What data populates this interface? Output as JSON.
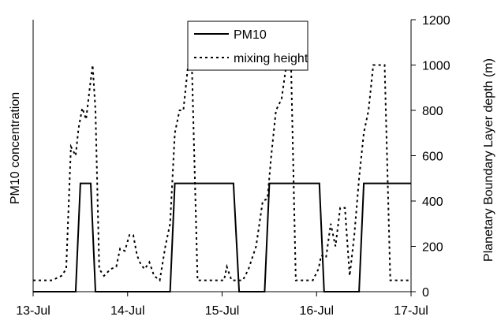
{
  "chart_data": {
    "type": "line",
    "ylabel_left": "PM10 concentration",
    "ylabel_right": "Planetary Boundary Layer depth (m)",
    "x_ticks": [
      "13-Jul",
      "14-Jul",
      "15-Jul",
      "16-Jul",
      "17-Jul"
    ],
    "xlim": [
      0,
      4
    ],
    "y_right_ticks": [
      0,
      200,
      400,
      600,
      800,
      1000,
      1200
    ],
    "y_right_lim": [
      0,
      1200
    ],
    "grid": false,
    "legend": "top-center",
    "series": [
      {
        "name": "PM10",
        "style": "solid",
        "color": "#000000",
        "x": [
          0.0,
          0.45,
          0.5,
          0.61,
          0.66,
          1.45,
          1.5,
          2.12,
          2.18,
          2.45,
          2.5,
          3.03,
          3.08,
          3.45,
          3.5,
          4.0
        ],
        "y": [
          0,
          0,
          478,
          478,
          0,
          0,
          478,
          478,
          0,
          0,
          478,
          478,
          0,
          0,
          478,
          478
        ]
      },
      {
        "name": "mixing height",
        "style": "dotted",
        "color": "#000000",
        "x": [
          0.0,
          0.2,
          0.3,
          0.35,
          0.4,
          0.45,
          0.48,
          0.52,
          0.56,
          0.6,
          0.63,
          0.66,
          0.7,
          0.75,
          0.82,
          0.88,
          0.92,
          0.97,
          1.02,
          1.06,
          1.1,
          1.14,
          1.18,
          1.23,
          1.28,
          1.34,
          1.4,
          1.45,
          1.5,
          1.55,
          1.59,
          1.64,
          1.68,
          1.74,
          1.79,
          1.85,
          1.93,
          2.02,
          2.05,
          2.1,
          2.15,
          2.22,
          2.28,
          2.36,
          2.43,
          2.48,
          2.52,
          2.57,
          2.63,
          2.68,
          2.73,
          2.78,
          2.85,
          2.9,
          2.96,
          3.02,
          3.05,
          3.1,
          3.15,
          3.2,
          3.25,
          3.3,
          3.35,
          3.4,
          3.45,
          3.5,
          3.55,
          3.6,
          3.66,
          3.72,
          3.78,
          3.84,
          3.9,
          4.0
        ],
        "y": [
          50,
          50,
          70,
          100,
          640,
          600,
          720,
          810,
          760,
          900,
          1000,
          800,
          100,
          70,
          100,
          110,
          190,
          180,
          250,
          250,
          160,
          120,
          100,
          130,
          70,
          50,
          200,
          300,
          700,
          800,
          800,
          1000,
          1000,
          50,
          50,
          50,
          50,
          50,
          110,
          50,
          50,
          50,
          100,
          200,
          400,
          410,
          600,
          800,
          850,
          1000,
          1000,
          50,
          50,
          50,
          50,
          100,
          160,
          150,
          300,
          200,
          370,
          370,
          70,
          250,
          500,
          700,
          800,
          1000,
          1000,
          1000,
          50,
          50,
          50,
          50
        ]
      }
    ]
  }
}
